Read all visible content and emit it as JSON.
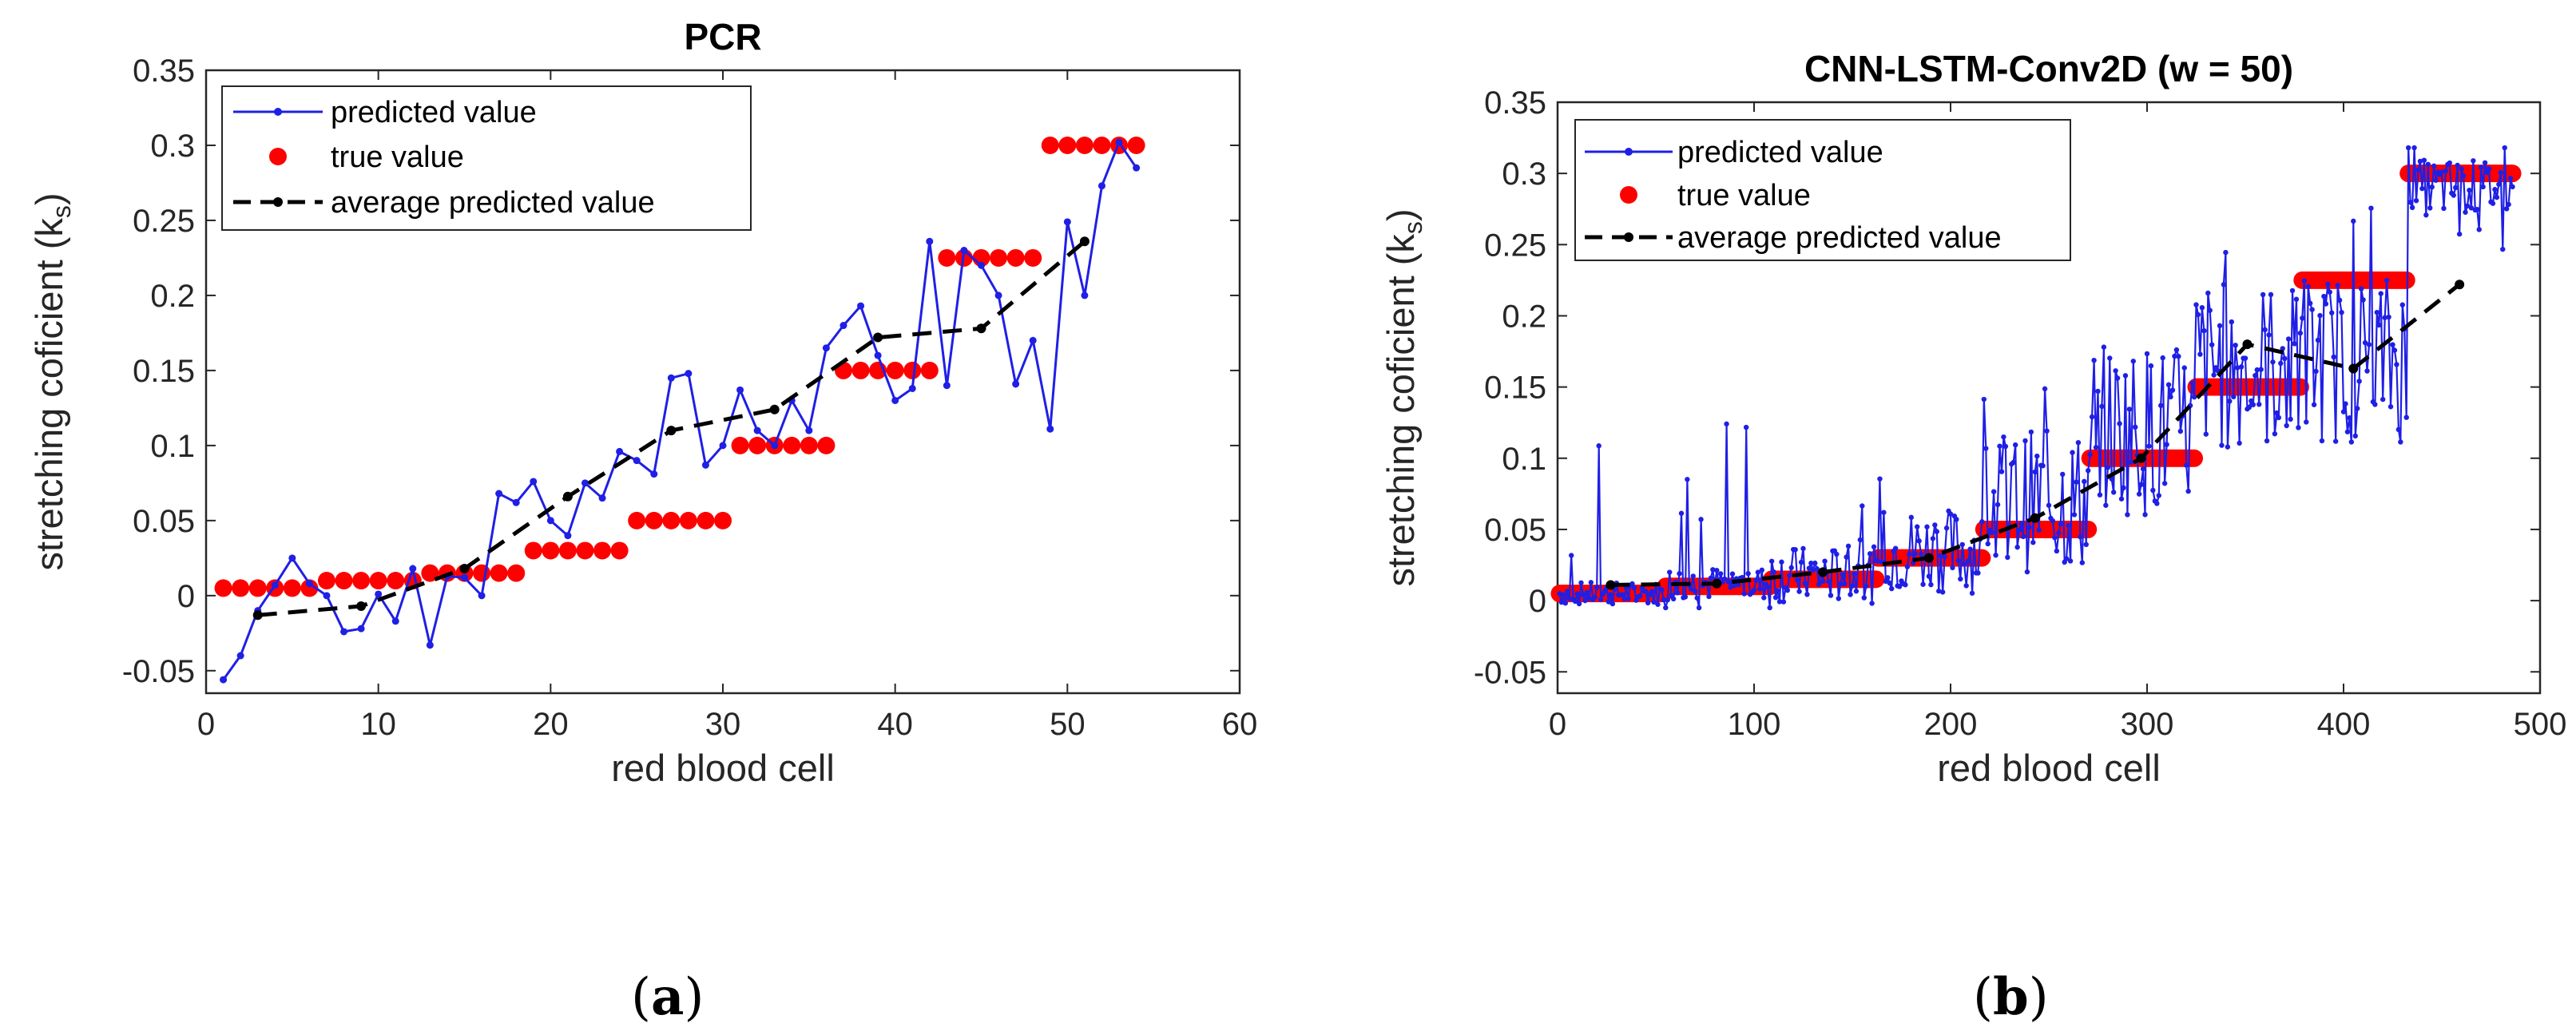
{
  "chart_data": [
    {
      "type": "line",
      "title": "PCR",
      "xlabel": "red blood cell",
      "ylabel": "stretching coficient (k",
      "ylabel_sub": "s",
      "ylabel_close": ")",
      "xlim": [
        0,
        60
      ],
      "ylim": [
        -0.065,
        0.35
      ],
      "xticks": [
        0,
        10,
        20,
        30,
        40,
        50,
        60
      ],
      "xtick_labels": [
        "0",
        "10",
        "20",
        "30",
        "40",
        "50",
        "60"
      ],
      "yticks": [
        -0.05,
        0,
        0.05,
        0.1,
        0.15,
        0.2,
        0.25,
        0.3,
        0.35
      ],
      "ytick_labels": [
        "-0.05",
        "0",
        "0.05",
        "0.1",
        "0.15",
        "0.2",
        "0.25",
        "0.3",
        "0.35"
      ],
      "legend": [
        "predicted value",
        "true value",
        "average predicted value"
      ],
      "legend_position": "top-left",
      "caption_open": "(",
      "caption_letter": "a",
      "caption_close": ")",
      "series": [
        {
          "name": "predicted value",
          "color": "#1f1fe6",
          "x": [
            1,
            2,
            3,
            4,
            5,
            6,
            7,
            8,
            9,
            10,
            11,
            12,
            13,
            14,
            15,
            16,
            17,
            18,
            19,
            20,
            21,
            22,
            23,
            24,
            25,
            26,
            27,
            28,
            29,
            30,
            31,
            32,
            33,
            34,
            35,
            36,
            37,
            38,
            39,
            40,
            41,
            42,
            43,
            44,
            45,
            46,
            47,
            48,
            49,
            50,
            51,
            52,
            53,
            54
          ],
          "y": [
            -0.056,
            -0.04,
            -0.01,
            0.007,
            0.025,
            0.008,
            0.0,
            -0.024,
            -0.022,
            0.001,
            -0.017,
            0.018,
            -0.033,
            0.013,
            0.012,
            0.0,
            0.068,
            0.062,
            0.076,
            0.05,
            0.04,
            0.075,
            0.065,
            0.096,
            0.09,
            0.081,
            0.145,
            0.148,
            0.087,
            0.1,
            0.137,
            0.11,
            0.1,
            0.13,
            0.11,
            0.165,
            0.18,
            0.193,
            0.16,
            0.13,
            0.138,
            0.236,
            0.14,
            0.23,
            0.22,
            0.2,
            0.141,
            0.17,
            0.111,
            0.249,
            0.2,
            0.273,
            0.302,
            0.285
          ]
        },
        {
          "name": "true value",
          "color": "#ff0000",
          "x": [
            1,
            2,
            3,
            4,
            5,
            6,
            7,
            8,
            9,
            10,
            11,
            12,
            13,
            14,
            15,
            16,
            17,
            18,
            19,
            20,
            21,
            22,
            23,
            24,
            25,
            26,
            27,
            28,
            29,
            30,
            31,
            32,
            33,
            34,
            35,
            36,
            37,
            38,
            39,
            40,
            41,
            42,
            43,
            44,
            45,
            46,
            47,
            48,
            49,
            50,
            51,
            52,
            53,
            54
          ],
          "y": [
            0.005,
            0.005,
            0.005,
            0.005,
            0.005,
            0.005,
            0.01,
            0.01,
            0.01,
            0.01,
            0.01,
            0.01,
            0.015,
            0.015,
            0.015,
            0.015,
            0.015,
            0.015,
            0.03,
            0.03,
            0.03,
            0.03,
            0.03,
            0.03,
            0.05,
            0.05,
            0.05,
            0.05,
            0.05,
            0.05,
            0.1,
            0.1,
            0.1,
            0.1,
            0.1,
            0.1,
            0.15,
            0.15,
            0.15,
            0.15,
            0.15,
            0.15,
            0.225,
            0.225,
            0.225,
            0.225,
            0.225,
            0.225,
            0.3,
            0.3,
            0.3,
            0.3,
            0.3,
            0.3
          ]
        },
        {
          "name": "average predicted value",
          "color": "#000000",
          "x": [
            3,
            9,
            15,
            21,
            27,
            33,
            39,
            45,
            51
          ],
          "y": [
            -0.013,
            -0.007,
            0.018,
            0.066,
            0.11,
            0.124,
            0.172,
            0.178,
            0.236
          ]
        }
      ]
    },
    {
      "type": "line",
      "title": "CNN-LSTM-Conv2D (w = 50)",
      "xlabel": "red blood cell",
      "ylabel": "stretching coficient (k",
      "ylabel_sub": "s",
      "ylabel_close": ")",
      "xlim": [
        0,
        500
      ],
      "ylim": [
        -0.065,
        0.35
      ],
      "xticks": [
        0,
        100,
        200,
        300,
        400,
        500
      ],
      "xtick_labels": [
        "0",
        "100",
        "200",
        "300",
        "400",
        "500"
      ],
      "yticks": [
        -0.05,
        0,
        0.05,
        0.1,
        0.15,
        0.2,
        0.25,
        0.3,
        0.35
      ],
      "ytick_labels": [
        "-0.05",
        "0",
        "0.05",
        "0.1",
        "0.15",
        "0.2",
        "0.25",
        "0.3",
        "0.35"
      ],
      "legend": [
        "predicted value",
        "true value",
        "average predicted value"
      ],
      "legend_position": "top-left",
      "caption_open": "(",
      "caption_letter": "b",
      "caption_close": ")",
      "segments": [
        {
          "x0": 1,
          "x1": 54,
          "true": 0.005,
          "base": 0.005,
          "spread": 0.008
        },
        {
          "x0": 55,
          "x1": 108,
          "true": 0.01,
          "base": 0.012,
          "spread": 0.012
        },
        {
          "x0": 109,
          "x1": 162,
          "true": 0.015,
          "base": 0.018,
          "spread": 0.02
        },
        {
          "x0": 163,
          "x1": 216,
          "true": 0.03,
          "base": 0.035,
          "spread": 0.03
        },
        {
          "x0": 217,
          "x1": 270,
          "true": 0.05,
          "base": 0.07,
          "spread": 0.05
        },
        {
          "x0": 271,
          "x1": 324,
          "true": 0.1,
          "base": 0.12,
          "spread": 0.06
        },
        {
          "x0": 325,
          "x1": 378,
          "true": 0.15,
          "base": 0.165,
          "spread": 0.06
        },
        {
          "x0": 379,
          "x1": 432,
          "true": 0.225,
          "base": 0.17,
          "spread": 0.06
        },
        {
          "x0": 433,
          "x1": 486,
          "true": 0.3,
          "base": 0.29,
          "spread": 0.02
        }
      ],
      "series": [
        {
          "name": "predicted value",
          "color": "#1f1fe6"
        },
        {
          "name": "true value",
          "color": "#ff0000"
        },
        {
          "name": "average predicted value",
          "color": "#000000",
          "x": [
            27,
            81,
            135,
            189,
            243,
            297,
            351,
            405,
            459
          ],
          "y": [
            0.011,
            0.012,
            0.02,
            0.03,
            0.058,
            0.1,
            0.18,
            0.163,
            0.222
          ]
        }
      ]
    }
  ]
}
